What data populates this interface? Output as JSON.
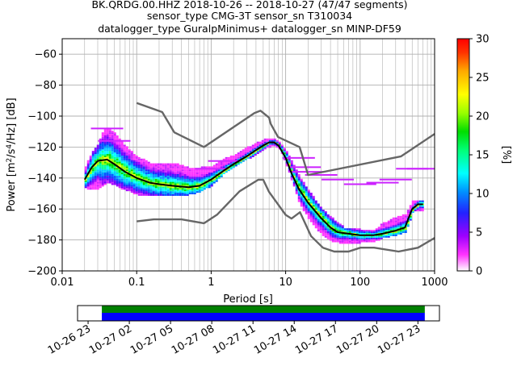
{
  "title_lines": [
    "BK.QRDG.00.HHZ   2018-10-26 -- 2018-10-27  (47/47 segments)",
    "sensor_type CMG-3T sensor_sn T310034",
    "datalogger_type GuralpMinimus+ datalogger_sn MINP-DF59"
  ],
  "colors": {
    "mean": "#000000",
    "noise_models": "#666666",
    "coverage_green": "#008000",
    "coverage_blue": "#0000ff"
  },
  "chart_data": [
    {
      "type": "heatmap",
      "title": "BK.QRDG.00.HHZ   2018-10-26 -- 2018-10-27  (47/47 segments)",
      "xlabel": "Period [s]",
      "ylabel": "Power [m²/s⁴/Hz] [dB]",
      "xscale": "log",
      "xlim": [
        0.01,
        1000
      ],
      "ylim": [
        -200,
        -50
      ],
      "xticks": [
        {
          "value": 0.01,
          "label": "0.01"
        },
        {
          "value": 0.1,
          "label": "0.1"
        },
        {
          "value": 1,
          "label": "1"
        },
        {
          "value": 10,
          "label": "10"
        },
        {
          "value": 100,
          "label": "100"
        },
        {
          "value": 1000,
          "label": "1000"
        }
      ],
      "yticks": [
        {
          "value": -60,
          "label": "−60"
        },
        {
          "value": -80,
          "label": "−80"
        },
        {
          "value": -100,
          "label": "−100"
        },
        {
          "value": -120,
          "label": "−120"
        },
        {
          "value": -140,
          "label": "−140"
        },
        {
          "value": -160,
          "label": "−160"
        },
        {
          "value": -180,
          "label": "−180"
        },
        {
          "value": -200,
          "label": "−200"
        }
      ],
      "grid": true,
      "colorbar": {
        "label": "[%]",
        "range": [
          0,
          30
        ],
        "ticks": [
          {
            "value": 0,
            "label": "0"
          },
          {
            "value": 5,
            "label": "5"
          },
          {
            "value": 10,
            "label": "10"
          },
          {
            "value": 15,
            "label": "15"
          },
          {
            "value": 20,
            "label": "20"
          },
          {
            "value": 25,
            "label": "25"
          },
          {
            "value": 30,
            "label": "30"
          }
        ]
      },
      "density": [
        {
          "x": 0.02,
          "min": -146,
          "max": -133
        },
        {
          "x": 0.025,
          "min": -147,
          "max": -124
        },
        {
          "x": 0.03,
          "min": -146,
          "max": -118
        },
        {
          "x": 0.035,
          "min": -144,
          "max": -110
        },
        {
          "x": 0.04,
          "min": -142,
          "max": -108
        },
        {
          "x": 0.05,
          "min": -144,
          "max": -112
        },
        {
          "x": 0.06,
          "min": -146,
          "max": -117
        },
        {
          "x": 0.08,
          "min": -148,
          "max": -123
        },
        {
          "x": 0.1,
          "min": -150,
          "max": -127
        },
        {
          "x": 0.15,
          "min": -151,
          "max": -131
        },
        {
          "x": 0.2,
          "min": -151,
          "max": -131
        },
        {
          "x": 0.3,
          "min": -151,
          "max": -131
        },
        {
          "x": 0.5,
          "min": -150,
          "max": -134
        },
        {
          "x": 0.7,
          "min": -148,
          "max": -134
        },
        {
          "x": 1,
          "min": -144,
          "max": -133
        },
        {
          "x": 1.5,
          "min": -136,
          "max": -128
        },
        {
          "x": 2,
          "min": -132,
          "max": -126
        },
        {
          "x": 3,
          "min": -127,
          "max": -121
        },
        {
          "x": 5,
          "min": -121,
          "max": -116
        },
        {
          "x": 6.5,
          "min": -118,
          "max": -115
        },
        {
          "x": 8,
          "min": -120,
          "max": -117
        },
        {
          "x": 10,
          "min": -131,
          "max": -123
        },
        {
          "x": 12,
          "min": -142,
          "max": -131
        },
        {
          "x": 15,
          "min": -156,
          "max": -140
        },
        {
          "x": 20,
          "min": -166,
          "max": -149
        },
        {
          "x": 30,
          "min": -176,
          "max": -161
        },
        {
          "x": 40,
          "min": -180,
          "max": -166
        },
        {
          "x": 60,
          "min": -182,
          "max": -173
        },
        {
          "x": 100,
          "min": -181,
          "max": -174
        },
        {
          "x": 150,
          "min": -180,
          "max": -174
        },
        {
          "x": 200,
          "min": -178,
          "max": -170
        },
        {
          "x": 300,
          "min": -176,
          "max": -166
        },
        {
          "x": 400,
          "min": -174,
          "max": -164
        },
        {
          "x": 500,
          "min": -161,
          "max": -155
        },
        {
          "x": 700,
          "min": -161,
          "max": -155
        }
      ],
      "outliers": [
        {
          "x": 0.04,
          "y": -108
        },
        {
          "x": 0.05,
          "y": -116
        },
        {
          "x": 1,
          "y": -134
        },
        {
          "x": 1.5,
          "y": -129
        },
        {
          "x": 20,
          "y": -136
        },
        {
          "x": 30,
          "y": -138
        },
        {
          "x": 50,
          "y": -141
        },
        {
          "x": 100,
          "y": -144
        },
        {
          "x": 200,
          "y": -143
        },
        {
          "x": 300,
          "y": -141
        },
        {
          "x": 500,
          "y": -134
        },
        {
          "x": 700,
          "y": -134
        },
        {
          "x": 15,
          "y": -127
        },
        {
          "x": 18,
          "y": -133
        }
      ],
      "series": [
        {
          "name": "mean",
          "x": [
            0.02,
            0.025,
            0.03,
            0.04,
            0.05,
            0.07,
            0.1,
            0.15,
            0.2,
            0.3,
            0.5,
            0.7,
            1,
            1.5,
            2,
            3,
            4,
            5,
            6,
            7,
            8,
            10,
            12,
            15,
            20,
            30,
            40,
            50,
            70,
            100,
            150,
            200,
            300,
            400,
            500,
            600,
            700
          ],
          "values": [
            -141,
            -133,
            -129,
            -128,
            -131,
            -136,
            -140,
            -143,
            -144,
            -145,
            -146,
            -145,
            -141,
            -135,
            -131,
            -126,
            -122,
            -119,
            -117,
            -117,
            -119,
            -127,
            -137,
            -147,
            -156,
            -166,
            -172,
            -175,
            -176,
            -177,
            -177,
            -176,
            -174,
            -172,
            -160,
            -157,
            -157
          ]
        },
        {
          "name": "upper noise model",
          "x": [
            0.1,
            0.22,
            0.32,
            0.8,
            3.8,
            4.6,
            6,
            6.3,
            7.9,
            15.4,
            20,
            354.8,
            1000
          ],
          "values": [
            -91.5,
            -97.4,
            -110.5,
            -120,
            -98,
            -96.5,
            -101,
            -105,
            -113.5,
            -120,
            -138,
            -126,
            -111.5
          ]
        },
        {
          "name": "lower noise model",
          "x": [
            0.1,
            0.17,
            0.4,
            0.8,
            1.2,
            2.4,
            4.3,
            5,
            6,
            10,
            12,
            15.6,
            21.9,
            31.6,
            45,
            70,
            101,
            154,
            328,
            600,
            1000
          ],
          "values": [
            -168,
            -166.7,
            -166.7,
            -169.2,
            -163.7,
            -148.6,
            -141.1,
            -141.1,
            -149,
            -163.8,
            -166.2,
            -162.1,
            -177.5,
            -185,
            -187.5,
            -187.5,
            -185,
            -185,
            -187.5,
            -185,
            -178.7
          ]
        }
      ]
    },
    {
      "type": "bar",
      "title": "",
      "orientation": "horizontal",
      "xlabel": "",
      "ylabel": "",
      "xlim": [
        "2018-10-26T22:14",
        "2018-10-28T00:34"
      ],
      "xticks": [
        {
          "value": "2018-10-26T23:00",
          "label": "10-26 23"
        },
        {
          "value": "2018-10-27T02:00",
          "label": "10-27 02"
        },
        {
          "value": "2018-10-27T05:00",
          "label": "10-27 05"
        },
        {
          "value": "2018-10-27T08:00",
          "label": "10-27 08"
        },
        {
          "value": "2018-10-27T11:00",
          "label": "10-27 11"
        },
        {
          "value": "2018-10-27T14:00",
          "label": "10-27 14"
        },
        {
          "value": "2018-10-27T17:00",
          "label": "10-27 17"
        },
        {
          "value": "2018-10-27T20:00",
          "label": "10-27 20"
        },
        {
          "value": "2018-10-27T23:00",
          "label": "10-27 23"
        }
      ],
      "series": [
        {
          "start": "2018-10-27T00:00",
          "end": "2018-10-27T23:30",
          "color": "#008000"
        },
        {
          "start": "2018-10-27T00:00",
          "end": "2018-10-27T23:30",
          "color": "#0000ff"
        }
      ]
    }
  ]
}
